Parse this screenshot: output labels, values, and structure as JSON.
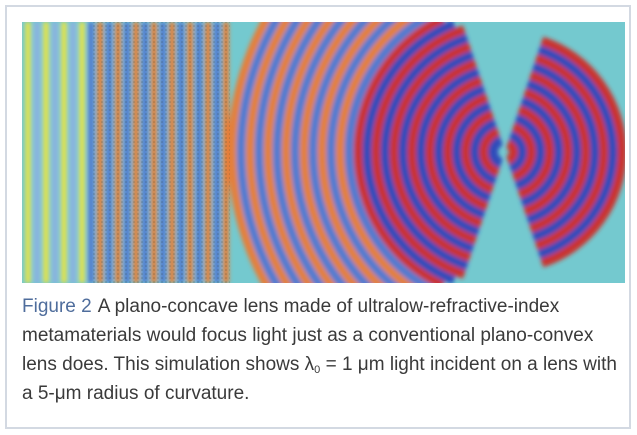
{
  "figure": {
    "label": "Figure 2",
    "caption_before": "A plano-concave lens made of ultralow-refractive-index metamaterials would focus light just as a conventional plano-convex lens does. This simulation shows λ",
    "caption_subscript": "0",
    "caption_after": " = 1 μm light incident on a lens with a 5-μm radius of curvature."
  }
}
